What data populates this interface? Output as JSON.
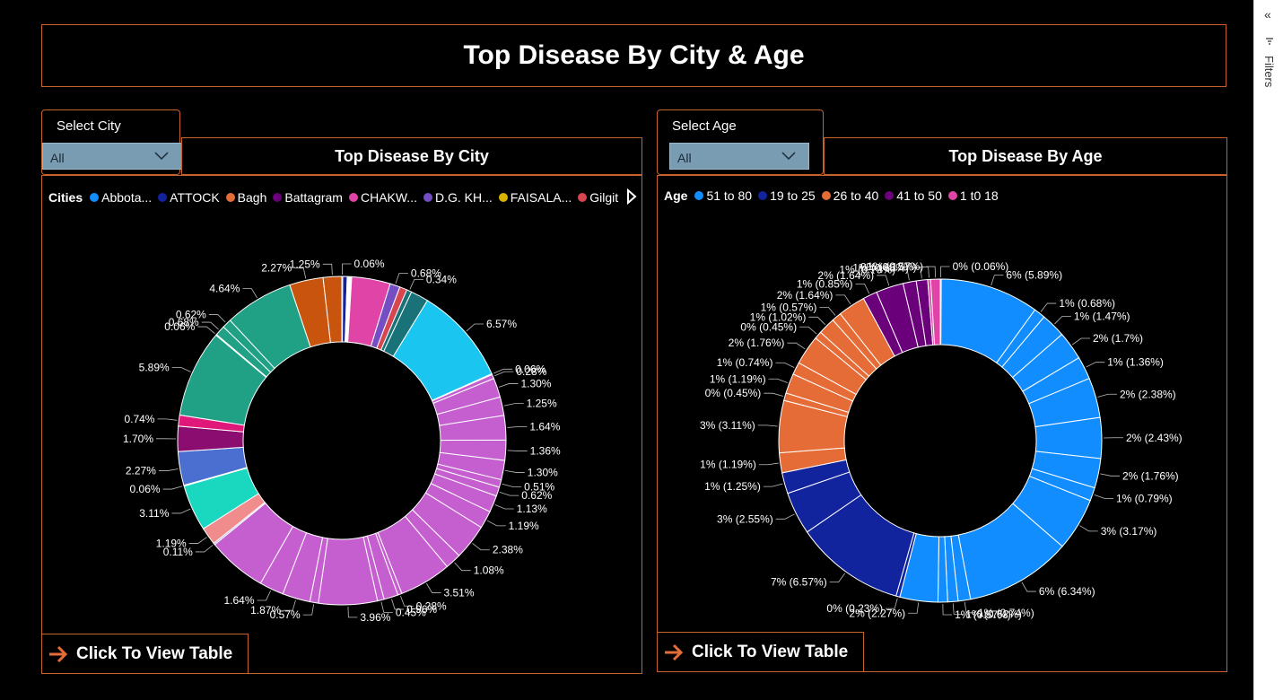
{
  "title": "Top Disease By City & Age",
  "sidebar": {
    "filters_label": "Filters",
    "collapse_glyph": "«"
  },
  "city_panel": {
    "slicer_label": "Select City",
    "slicer_value": "All",
    "header": "Top Disease By City",
    "legend_title": "Cities",
    "legend": [
      {
        "name": "Abbota...",
        "color": "#118dff"
      },
      {
        "name": "ATTOCK",
        "color": "#12239e"
      },
      {
        "name": "Bagh",
        "color": "#e66c37"
      },
      {
        "name": "Battagram",
        "color": "#6b007b"
      },
      {
        "name": "CHAKW...",
        "color": "#e044a7"
      },
      {
        "name": "D.G. KH...",
        "color": "#744ec2"
      },
      {
        "name": "FAISALA...",
        "color": "#d9b300"
      },
      {
        "name": "Gilgit",
        "color": "#d64550"
      }
    ],
    "cta": "Click To View Table"
  },
  "age_panel": {
    "slicer_label": "Select Age",
    "slicer_value": "All",
    "header": "Top Disease By Age",
    "legend_title": "Age",
    "legend": [
      {
        "name": "51 to 80",
        "color": "#118dff"
      },
      {
        "name": "19 to 25",
        "color": "#12239e"
      },
      {
        "name": "26 to 40",
        "color": "#e66c37"
      },
      {
        "name": "41 to 50",
        "color": "#6b007b"
      },
      {
        "name": "1 t0 18",
        "color": "#e044a7"
      }
    ],
    "cta": "Click To View Table"
  },
  "chart_data": [
    {
      "type": "pie",
      "title": "Top Disease By City",
      "donut": true,
      "slices": [
        {
          "label": "0.06%",
          "value": 0.06,
          "color": "#118dff"
        },
        {
          "label": "",
          "value": 0.3,
          "color": "#12239e"
        },
        {
          "label": "",
          "value": 0.3,
          "color": "#ffffff"
        },
        {
          "label": "",
          "value": 2.6,
          "color": "#e044a7"
        },
        {
          "label": "0.68%",
          "value": 0.68,
          "color": "#744ec2"
        },
        {
          "label": "",
          "value": 0.5,
          "color": "#d64550"
        },
        {
          "label": "0.34%",
          "value": 0.34,
          "color": "#197278"
        },
        {
          "label": "",
          "value": 1.2,
          "color": "#197278"
        },
        {
          "label": "6.57%",
          "value": 6.57,
          "color": "#1ac6ef"
        },
        {
          "label": "0.06%",
          "value": 0.06,
          "color": "#c55fd0"
        },
        {
          "label": "0.28%",
          "value": 0.28,
          "color": "#c55fd0"
        },
        {
          "label": "1.30%",
          "value": 1.3,
          "color": "#c55fd0"
        },
        {
          "label": "1.25%",
          "value": 1.25,
          "color": "#c55fd0"
        },
        {
          "label": "1.64%",
          "value": 1.64,
          "color": "#c55fd0"
        },
        {
          "label": "1.36%",
          "value": 1.36,
          "color": "#c55fd0"
        },
        {
          "label": "1.30%",
          "value": 1.3,
          "color": "#c55fd0"
        },
        {
          "label": "0.51%",
          "value": 0.51,
          "color": "#c55fd0"
        },
        {
          "label": "0.62%",
          "value": 0.62,
          "color": "#c55fd0"
        },
        {
          "label": "1.13%",
          "value": 1.13,
          "color": "#c55fd0"
        },
        {
          "label": "1.19%",
          "value": 1.19,
          "color": "#c55fd0"
        },
        {
          "label": "2.38%",
          "value": 2.38,
          "color": "#c55fd0"
        },
        {
          "label": "1.08%",
          "value": 1.08,
          "color": "#c55fd0"
        },
        {
          "label": "3.51%",
          "value": 3.51,
          "color": "#c55fd0"
        },
        {
          "label": "0.28%",
          "value": 0.28,
          "color": "#c55fd0"
        },
        {
          "label": "0.96%",
          "value": 0.96,
          "color": "#c55fd0"
        },
        {
          "label": "0.45%",
          "value": 0.45,
          "color": "#c55fd0"
        },
        {
          "label": "3.96%",
          "value": 3.96,
          "color": "#c55fd0"
        },
        {
          "label": "0.57%",
          "value": 0.57,
          "color": "#c55fd0"
        },
        {
          "label": "1.87%",
          "value": 1.87,
          "color": "#c55fd0"
        },
        {
          "label": "1.64%",
          "value": 1.64,
          "color": "#c55fd0"
        },
        {
          "label": "",
          "value": 4.0,
          "color": "#c55fd0"
        },
        {
          "label": "0.11%",
          "value": 0.11,
          "color": "#b3a5e8"
        },
        {
          "label": "1.19%",
          "value": 1.19,
          "color": "#f08c8c"
        },
        {
          "label": "3.11%",
          "value": 3.11,
          "color": "#1ad8c0"
        },
        {
          "label": "0.06%",
          "value": 0.06,
          "color": "#a6c84a"
        },
        {
          "label": "2.27%",
          "value": 2.27,
          "color": "#4a6fd0"
        },
        {
          "label": "1.70%",
          "value": 1.7,
          "color": "#8a0d6f"
        },
        {
          "label": "0.74%",
          "value": 0.74,
          "color": "#e0187a"
        },
        {
          "label": "5.89%",
          "value": 5.89,
          "color": "#20a085"
        },
        {
          "label": "0.06%",
          "value": 0.06,
          "color": "#20a085"
        },
        {
          "label": "0.68%",
          "value": 0.68,
          "color": "#20a085"
        },
        {
          "label": "0.62%",
          "value": 0.62,
          "color": "#20a085"
        },
        {
          "label": "4.64%",
          "value": 4.64,
          "color": "#20a085"
        },
        {
          "label": "2.27%",
          "value": 2.27,
          "color": "#c9540e"
        },
        {
          "label": "1.25%",
          "value": 1.25,
          "color": "#c9540e"
        }
      ]
    },
    {
      "type": "pie",
      "title": "Top Disease By Age",
      "donut": true,
      "slices": [
        {
          "label": "0% (0.06%)",
          "value": 0.06,
          "color": "#118dff"
        },
        {
          "label": "6% (5.89%)",
          "value": 5.89,
          "color": "#118dff"
        },
        {
          "label": "1% (0.68%)",
          "value": 0.68,
          "color": "#118dff"
        },
        {
          "label": "1% (1.47%)",
          "value": 1.47,
          "color": "#118dff"
        },
        {
          "label": "2% (1.7%)",
          "value": 1.7,
          "color": "#118dff"
        },
        {
          "label": "1% (1.36%)",
          "value": 1.36,
          "color": "#118dff"
        },
        {
          "label": "2% (2.38%)",
          "value": 2.38,
          "color": "#118dff"
        },
        {
          "label": "2% (2.43%)",
          "value": 2.43,
          "color": "#118dff"
        },
        {
          "label": "2% (1.76%)",
          "value": 1.76,
          "color": "#118dff"
        },
        {
          "label": "1% (0.79%)",
          "value": 0.79,
          "color": "#118dff"
        },
        {
          "label": "3% (3.17%)",
          "value": 3.17,
          "color": "#118dff"
        },
        {
          "label": "6% (6.34%)",
          "value": 6.34,
          "color": "#118dff"
        },
        {
          "label": "1% (0.74%)",
          "value": 0.74,
          "color": "#118dff"
        },
        {
          "label": "1% (0.62%)",
          "value": 0.62,
          "color": "#118dff"
        },
        {
          "label": "1% (0.57%)",
          "value": 0.57,
          "color": "#118dff"
        },
        {
          "label": "2% (2.27%)",
          "value": 2.27,
          "color": "#118dff"
        },
        {
          "label": "0% (0.23%)",
          "value": 0.23,
          "color": "#12239e"
        },
        {
          "label": "7% (6.57%)",
          "value": 6.57,
          "color": "#12239e"
        },
        {
          "label": "3% (2.55%)",
          "value": 2.55,
          "color": "#12239e"
        },
        {
          "label": "1% (1.25%)",
          "value": 1.25,
          "color": "#12239e"
        },
        {
          "label": "1% (1.19%)",
          "value": 1.19,
          "color": "#e66c37"
        },
        {
          "label": "3% (3.11%)",
          "value": 3.11,
          "color": "#e66c37"
        },
        {
          "label": "0% (0.45%)",
          "value": 0.45,
          "color": "#e66c37"
        },
        {
          "label": "1% (1.19%)",
          "value": 1.19,
          "color": "#e66c37"
        },
        {
          "label": "1% (0.74%)",
          "value": 0.74,
          "color": "#e66c37"
        },
        {
          "label": "2% (1.76%)",
          "value": 1.76,
          "color": "#e66c37"
        },
        {
          "label": "0% (0.45%)",
          "value": 0.45,
          "color": "#e66c37"
        },
        {
          "label": "1% (1.02%)",
          "value": 1.02,
          "color": "#e66c37"
        },
        {
          "label": "1% (0.57%)",
          "value": 0.57,
          "color": "#e66c37"
        },
        {
          "label": "2% (1.64%)",
          "value": 1.64,
          "color": "#e66c37"
        },
        {
          "label": "1% (0.85%)",
          "value": 0.85,
          "color": "#6b007b"
        },
        {
          "label": "2% (1.64%)",
          "value": 1.64,
          "color": "#6b007b"
        },
        {
          "label": "1% (0.79%)",
          "value": 0.79,
          "color": "#6b007b"
        },
        {
          "label": "1% (0.68%)",
          "value": 0.68,
          "color": "#6b007b"
        },
        {
          "label": "0% (0.17%)",
          "value": 0.17,
          "color": "#e044a7"
        },
        {
          "label": "1% (0.57%)",
          "value": 0.57,
          "color": "#e044a7"
        }
      ]
    }
  ]
}
